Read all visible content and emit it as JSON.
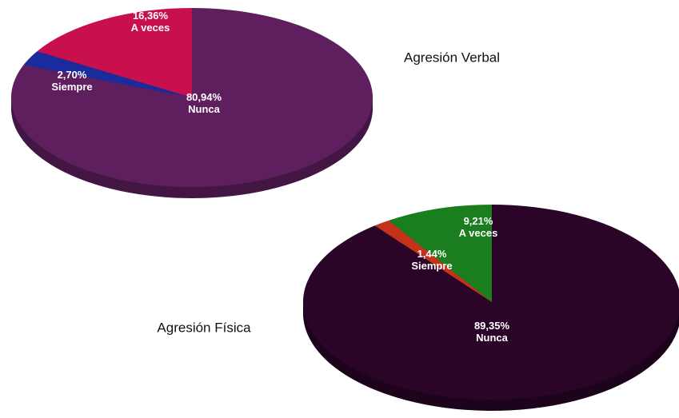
{
  "chart_data": [
    {
      "type": "pie",
      "title": "Agresión Verbal",
      "categories": [
        "Nunca",
        "Siempre",
        "A veces"
      ],
      "values": [
        80.94,
        2.7,
        16.36
      ],
      "value_labels": [
        "80,94%",
        "2,70%",
        "16,36%"
      ],
      "colors": [
        "#5f1f5f",
        "#1b2a9c",
        "#c8104c"
      ]
    },
    {
      "type": "pie",
      "title": "Agresión Física",
      "categories": [
        "Nunca",
        "Siempre",
        "A veces"
      ],
      "values": [
        89.35,
        1.44,
        9.21
      ],
      "value_labels": [
        "89,35%",
        "1,44%",
        "9,21%"
      ],
      "colors": [
        "#2a0528",
        "#c4321a",
        "#1a7d1e"
      ]
    }
  ]
}
